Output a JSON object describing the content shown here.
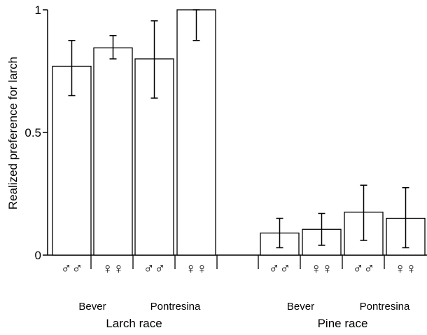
{
  "chart_data": {
    "type": "bar",
    "ylabel": "Realized preference for larch",
    "ylim": [
      0,
      1
    ],
    "yticks": [
      0,
      0.5,
      1
    ],
    "ytick_labels": [
      "0",
      "0.5",
      "1"
    ],
    "categories": [
      "♂♂",
      "♀♀",
      "♂♂",
      "♀♀",
      "♂♂",
      "♀♀",
      "♂♂",
      "♀♀"
    ],
    "values": [
      0.77,
      0.845,
      0.8,
      1.0,
      0.09,
      0.105,
      0.175,
      0.15
    ],
    "error_low": [
      0.65,
      0.8,
      0.64,
      0.875,
      0.03,
      0.04,
      0.06,
      0.03
    ],
    "error_high": [
      0.875,
      0.895,
      0.955,
      1.0,
      0.15,
      0.17,
      0.285,
      0.275
    ],
    "populations": [
      {
        "label": "Bever",
        "bars": [
          0,
          1
        ]
      },
      {
        "label": "Pontresina",
        "bars": [
          2,
          3
        ]
      },
      {
        "label": "Bever",
        "bars": [
          4,
          5
        ]
      },
      {
        "label": "Pontresina",
        "bars": [
          6,
          7
        ]
      }
    ],
    "races": [
      {
        "label": "Larch race",
        "bars": [
          0,
          1,
          2,
          3
        ]
      },
      {
        "label": "Pine race",
        "bars": [
          4,
          5,
          6,
          7
        ]
      }
    ]
  }
}
